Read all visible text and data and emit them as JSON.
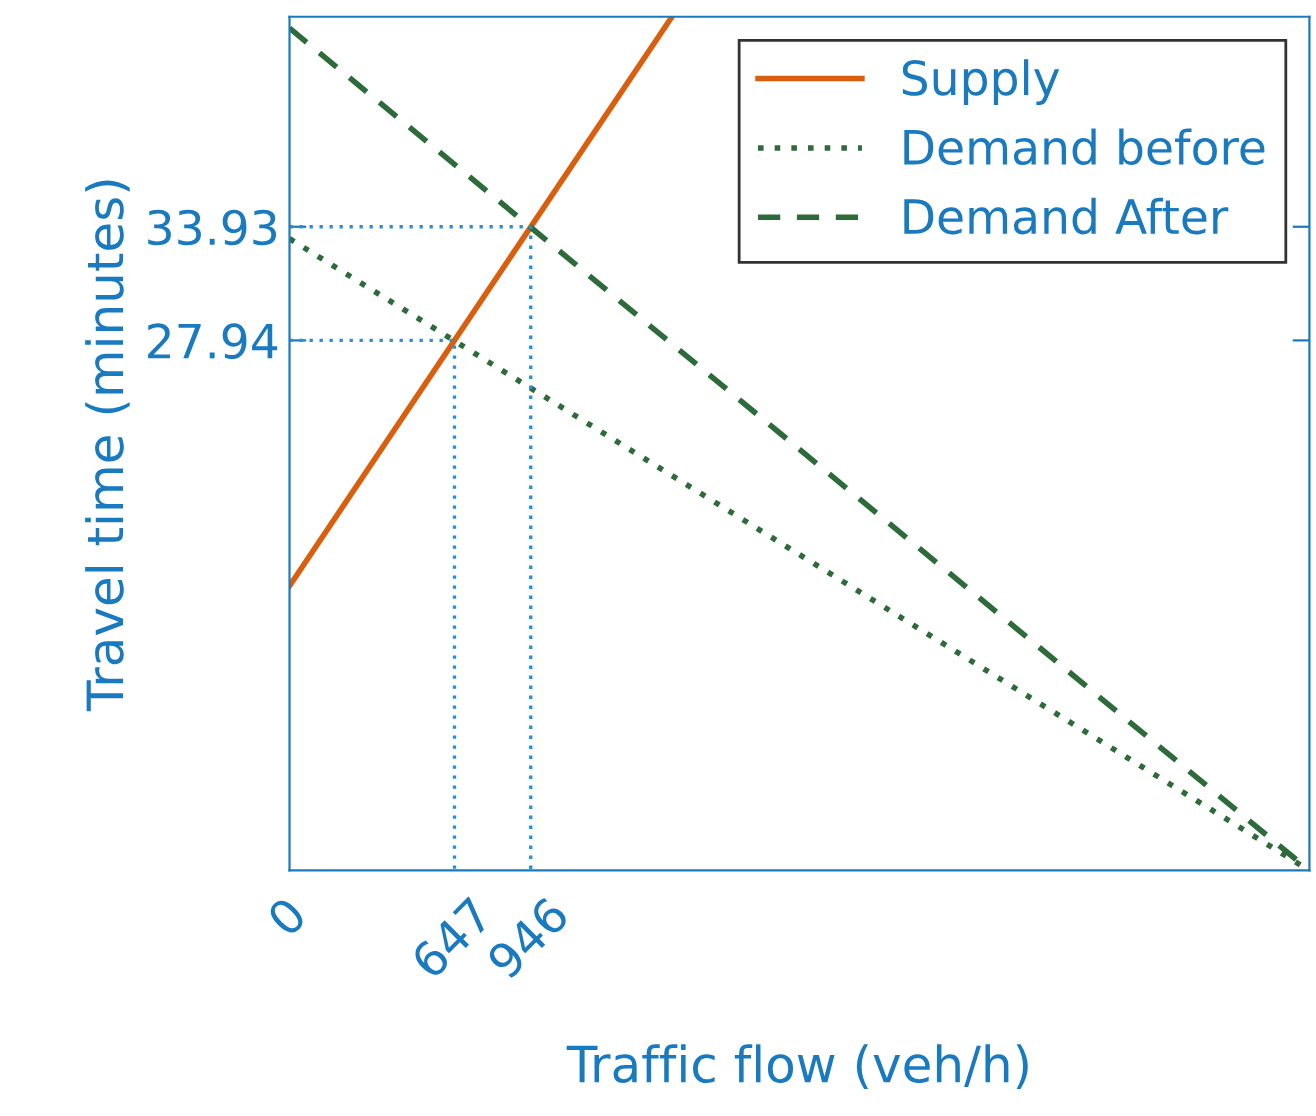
{
  "chart_data": {
    "type": "line",
    "xlabel": "Traffic flow (veh/h)",
    "ylabel": "Travel time (minutes)",
    "xlim": [
      0,
      4000
    ],
    "ylim": [
      0,
      45
    ],
    "xticks": [
      0,
      647,
      946
    ],
    "yticks": [
      27.94,
      33.93
    ],
    "grid": false,
    "legend": "top right",
    "marker": "none",
    "series": [
      {
        "name": "Supply",
        "color": "#d95f0e",
        "line_style": "solid",
        "x": [
          0,
          1500
        ],
        "values": [
          15,
          45
        ]
      },
      {
        "name": "Demand before",
        "color": "#2e6b3a",
        "line_style": "dotted",
        "x": [
          0,
          4000
        ],
        "values": [
          33.3,
          0
        ]
      },
      {
        "name": "Demand After",
        "color": "#2e6b3a",
        "line_style": "dashed",
        "x": [
          0,
          4000
        ],
        "values": [
          44.4,
          0
        ]
      },
      {
        "color": "#2b8fd6",
        "line_style": "dotted",
        "x": [
          0,
          647,
          647
        ],
        "values": [
          27.94,
          27.94,
          0
        ]
      },
      {
        "color": "#2b8fd6",
        "line_style": "dotted",
        "x": [
          0,
          946,
          946
        ],
        "values": [
          33.93,
          33.93,
          0
        ]
      }
    ]
  }
}
